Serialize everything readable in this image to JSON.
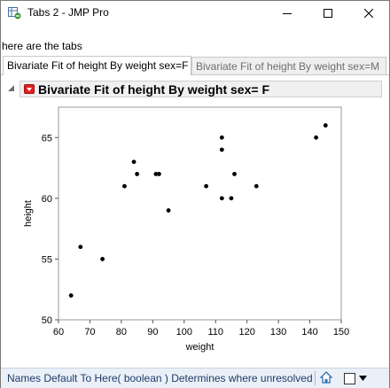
{
  "window": {
    "title": "Tabs 2 - JMP Pro",
    "controls": {
      "minimize": "minimize-icon",
      "maximize": "maximize-icon",
      "close": "close-icon"
    }
  },
  "caption": "here are the tabs",
  "tabs": [
    {
      "label": "Bivariate Fit of height By weight sex=F",
      "active": true
    },
    {
      "label": "Bivariate Fit of height By weight sex=M",
      "active": false
    }
  ],
  "outline": {
    "title": "Bivariate Fit of height By weight sex= F"
  },
  "chart_data": {
    "type": "scatter",
    "title": "",
    "xlabel": "weight",
    "ylabel": "height",
    "xlim": [
      60,
      150
    ],
    "ylim": [
      50,
      67.5
    ],
    "xticks": [
      60,
      70,
      80,
      90,
      100,
      110,
      120,
      130,
      140,
      150
    ],
    "yticks": [
      50,
      55,
      60,
      65
    ],
    "grid": false,
    "points": [
      {
        "x": 64,
        "y": 52
      },
      {
        "x": 67,
        "y": 56
      },
      {
        "x": 74,
        "y": 55
      },
      {
        "x": 81,
        "y": 61
      },
      {
        "x": 84,
        "y": 63
      },
      {
        "x": 85,
        "y": 62
      },
      {
        "x": 91,
        "y": 62
      },
      {
        "x": 92,
        "y": 62
      },
      {
        "x": 95,
        "y": 59
      },
      {
        "x": 107,
        "y": 61
      },
      {
        "x": 112,
        "y": 65
      },
      {
        "x": 112,
        "y": 64
      },
      {
        "x": 112,
        "y": 60
      },
      {
        "x": 115,
        "y": 60
      },
      {
        "x": 116,
        "y": 62
      },
      {
        "x": 123,
        "y": 61
      },
      {
        "x": 142,
        "y": 65
      },
      {
        "x": 145,
        "y": 66
      }
    ],
    "colors": {
      "marker": "#000000",
      "frame": "#9a9a9a"
    }
  },
  "status": {
    "text": "Names Default To Here( boolean )  Determines where unresolved",
    "icons": [
      "home-icon",
      "checkbox",
      "dropdown-arrow-icon"
    ],
    "colors": {
      "background": "#eaf0f8",
      "text": "#1f3b68"
    }
  }
}
